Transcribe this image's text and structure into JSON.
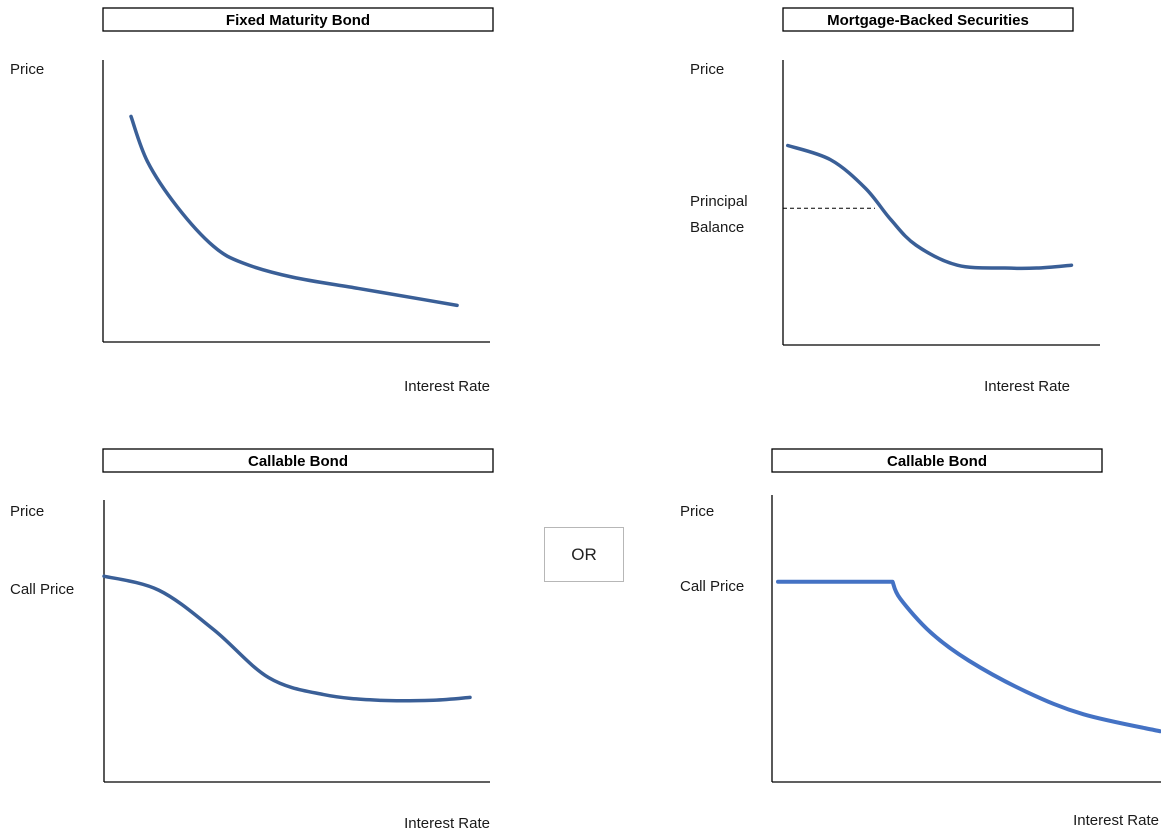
{
  "colors": {
    "curve": "#3a5f97",
    "curve_bright": "#4472c4",
    "axis": "#000000",
    "dash": "#000000"
  },
  "separator": "OR",
  "chart_data": [
    {
      "type": "line",
      "title": "Fixed Maturity Bond",
      "xlabel": "Interest Rate",
      "ylabel": "Price",
      "series": [
        {
          "x": [
            0.1,
            0.6,
            1.5,
            2.6,
            3.5,
            5.0,
            7.0,
            9.0,
            10.0
          ],
          "y": [
            8.0,
            6.4,
            4.8,
            3.4,
            2.8,
            2.3,
            1.9,
            1.5,
            1.3
          ]
        }
      ],
      "xlim": [
        -0.75,
        11
      ],
      "ylim": [
        0,
        10
      ],
      "annotations": []
    },
    {
      "type": "line",
      "title": "Mortgage-Backed Securities",
      "xlabel": "Interest Rate",
      "ylabel": "Price",
      "series": [
        {
          "x": [
            0.15,
            1.5,
            2.6,
            3.4,
            4.2,
            5.5,
            7.0,
            8.0,
            9.1
          ],
          "y": [
            7.0,
            6.5,
            5.5,
            4.4,
            3.5,
            2.8,
            2.7,
            2.7,
            2.8
          ]
        }
      ],
      "xlim": [
        0,
        10
      ],
      "ylim": [
        0,
        10
      ],
      "annotations": [
        {
          "text": "Principal Balance",
          "y": 4.8
        }
      ]
    },
    {
      "type": "line",
      "title": "Callable Bond",
      "xlabel": "Interest Rate",
      "ylabel": "Price",
      "series": [
        {
          "x": [
            0,
            1.5,
            3.0,
            4.5,
            6.0,
            7.5,
            9.0,
            10.0
          ],
          "y": [
            7.3,
            6.8,
            5.4,
            3.7,
            3.1,
            2.9,
            2.9,
            3.0
          ]
        }
      ],
      "xlim": [
        0,
        10
      ],
      "ylim": [
        0,
        10
      ],
      "annotations": [
        {
          "text": "Call Price",
          "y": 7.3
        }
      ]
    },
    {
      "type": "line",
      "title": "Callable Bond",
      "xlabel": "Interest Rate",
      "ylabel": "Price",
      "series": [
        {
          "x": [
            0,
            3.0,
            3.2,
            4.0,
            5.0,
            6.5,
            8.0,
            10.0
          ],
          "y": [
            7.1,
            7.1,
            6.5,
            5.3,
            4.3,
            3.2,
            2.4,
            1.8
          ]
        }
      ],
      "xlim": [
        0,
        10
      ],
      "ylim": [
        0,
        10
      ],
      "annotations": [
        {
          "text": "Call Price",
          "y": 7.1
        }
      ]
    }
  ]
}
